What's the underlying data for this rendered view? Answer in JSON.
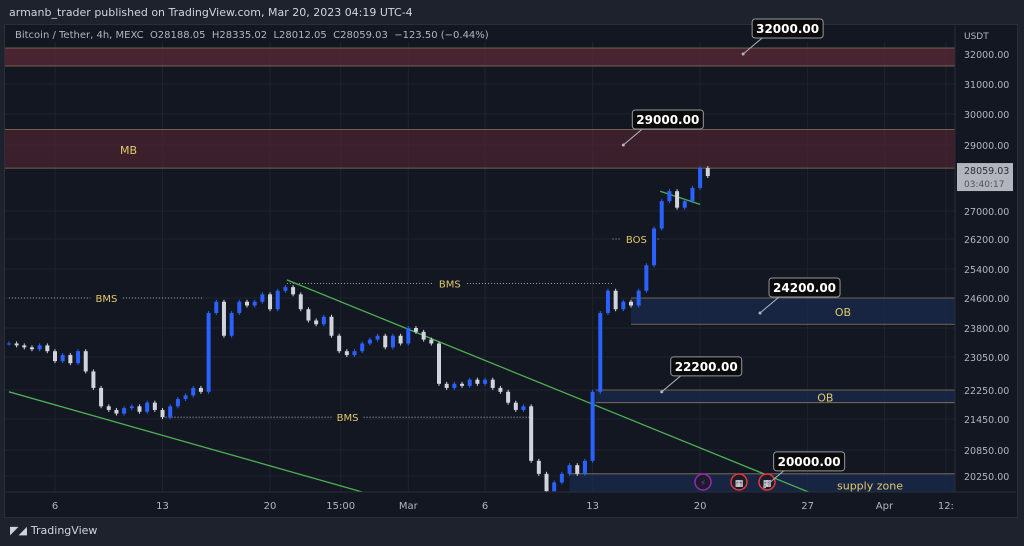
{
  "publisher": "armanb_trader published on TradingView.com, Mar 20, 2023 04:19 UTC-4",
  "footer_brand": "TradingView",
  "chart_data": {
    "type": "candlestick",
    "title": "Bitcoin / Tether, 4h, MEXC",
    "ohlc_readout": {
      "open": "O28188.05",
      "high": "H28335.02",
      "low": "L28012.05",
      "close": "C28059.03",
      "change": "−123.50 (−0.44%)"
    },
    "currency": "USDT",
    "y_ticks": [
      32000,
      31000,
      30000,
      29000,
      27000,
      26200,
      25400,
      24600,
      23800,
      23050,
      22250,
      21450,
      20850,
      20250
    ],
    "y_tick_labels": [
      "32000.00",
      "31000.00",
      "30000.00",
      "29000.00",
      "27000.00",
      "26200.00",
      "25400.00",
      "24600.00",
      "23800.00",
      "23050.00",
      "22250.00",
      "21450.00",
      "20850.00",
      "20250.00"
    ],
    "x_tick_labels": [
      {
        "label": "6",
        "day": 0
      },
      {
        "label": "13",
        "day": 7
      },
      {
        "label": "20",
        "day": 14
      },
      {
        "label": "15:00",
        "day": 18.6
      },
      {
        "label": "Mar",
        "day": 23
      },
      {
        "label": "6",
        "day": 28
      },
      {
        "label": "13",
        "day": 35
      },
      {
        "label": "20",
        "day": 42
      },
      {
        "label": "27",
        "day": 49
      },
      {
        "label": "Apr",
        "day": 54
      },
      {
        "label": "12:",
        "day": 58
      }
    ],
    "x_unit": "days since Feb 6, 2023 (12h candles)",
    "first_day": -3,
    "closes": [
      23400,
      23350,
      23300,
      23250,
      23350,
      23200,
      22950,
      23100,
      22900,
      23200,
      22700,
      22300,
      21800,
      21700,
      21600,
      21750,
      21800,
      21650,
      21900,
      21700,
      21500,
      21800,
      22000,
      22100,
      22300,
      22200,
      24200,
      24500,
      23600,
      24200,
      24500,
      24400,
      24500,
      24700,
      24300,
      24800,
      24900,
      24700,
      24300,
      24000,
      23900,
      24100,
      23600,
      23200,
      23100,
      23200,
      23400,
      23500,
      23600,
      23300,
      23600,
      23400,
      23800,
      23700,
      23500,
      23400,
      22400,
      22300,
      22400,
      22350,
      22500,
      22400,
      22500,
      22300,
      22200,
      21900,
      21700,
      21800,
      20600,
      20300,
      19900,
      20100,
      20300,
      20500,
      20300,
      20600,
      22200,
      24200,
      24800,
      24300,
      24500,
      24400,
      24800,
      25500,
      26500,
      27300,
      27600,
      27100,
      27300,
      27700,
      28300,
      28059.03
    ],
    "last_price": {
      "price": "28059.03",
      "countdown": "03:40:17"
    },
    "zones": [
      {
        "name": "32000 zone",
        "from": 31600,
        "to": 32200,
        "color": "#5b2a35"
      },
      {
        "name": "MB",
        "label": "MB",
        "from": 28300,
        "to": 29500,
        "color": "#4a2430"
      },
      {
        "name": "OB upper",
        "label": "OB",
        "from": 23900,
        "to": 24600,
        "start_day": 37.5,
        "color": "#1a2b4f"
      },
      {
        "name": "OB lower",
        "label": "OB",
        "from": 21900,
        "to": 22250,
        "start_day": 35.2,
        "color": "#1a2b4f"
      },
      {
        "name": "supply zone",
        "label": "supply zone",
        "from": 19800,
        "to": 20300,
        "start_day": 33.5,
        "color": "#1a2b4f"
      }
    ],
    "callouts": [
      {
        "text": "32000.00",
        "price": 32000,
        "day": 44.8
      },
      {
        "text": "29000.00",
        "price": 29000,
        "day": 37
      },
      {
        "text": "24200.00",
        "price": 24200,
        "day": 45.9
      },
      {
        "text": "22200.00",
        "price": 22200,
        "day": 39.5
      },
      {
        "text": "20000.00",
        "price": 20000,
        "day": 46.2
      }
    ],
    "structure_labels": [
      {
        "text": "BMS",
        "price": 24600,
        "from_day": -3,
        "to_day": 9.7
      },
      {
        "text": "BMS",
        "price": 25000,
        "from_day": 15.1,
        "to_day": 36.3
      },
      {
        "text": "BMS",
        "price": 21500,
        "from_day": 7.2,
        "to_day": 30.9
      },
      {
        "text": "BOS",
        "price": 26200,
        "from_day": 36.3,
        "to_day": 39.4
      }
    ],
    "trendlines": [
      {
        "from": {
          "day": -3,
          "price": 22200
        },
        "to": {
          "day": 22.8,
          "price": 19600
        }
      },
      {
        "from": {
          "day": 15.1,
          "price": 25100
        },
        "to": {
          "day": 51,
          "price": 19600
        }
      },
      {
        "from": {
          "day": 39.4,
          "price": 27600
        },
        "to": {
          "day": 42,
          "price": 27200
        }
      }
    ],
    "event_icons": [
      "lightning-icon",
      "us-flag-icon",
      "us-flag-icon"
    ],
    "colors": {
      "up": "#2962ff",
      "down": "#d1d4dc",
      "trend": "#4caf50",
      "label": "#e0c96b",
      "background": "#131722"
    }
  }
}
